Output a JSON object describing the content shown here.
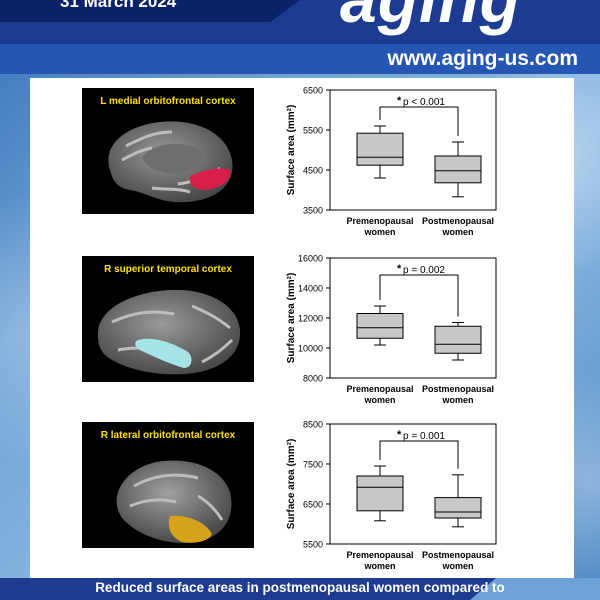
{
  "header": {
    "date": "31 March 2024",
    "logo": "aging",
    "url": "www.aging-us.com"
  },
  "panels": [
    {
      "region": "L medial orbitofrontal cortex",
      "highlight_color": "#d81e4a",
      "chart": {
        "type": "box",
        "ylabel": "Surface area (mm²)",
        "yticks": [
          "3500",
          "4500",
          "5500",
          "6500"
        ],
        "ylim": [
          3500,
          6500
        ],
        "annotation": "p < 0.001",
        "star": "*",
        "categories": [
          "Premenopausal women",
          "Postmenopausal women"
        ],
        "boxes": [
          {
            "whisker_min": 4300,
            "q1": 4620,
            "median": 4820,
            "q3": 5420,
            "whisker_max": 5600
          },
          {
            "whisker_min": 3830,
            "q1": 4180,
            "median": 4480,
            "q3": 4850,
            "whisker_max": 5200
          }
        ]
      }
    },
    {
      "region": "R superior temporal cortex",
      "highlight_color": "#a6e3e6",
      "chart": {
        "type": "box",
        "ylabel": "Surface area (mm²)",
        "yticks": [
          "8000",
          "10000",
          "12000",
          "14000",
          "16000"
        ],
        "ylim": [
          8000,
          16000
        ],
        "annotation": "p = 0.002",
        "star": "*",
        "categories": [
          "Premenopausal women",
          "Postmenopausal women"
        ],
        "boxes": [
          {
            "whisker_min": 10200,
            "q1": 10650,
            "median": 11350,
            "q3": 12300,
            "whisker_max": 12800
          },
          {
            "whisker_min": 9200,
            "q1": 9650,
            "median": 10250,
            "q3": 11450,
            "whisker_max": 11700
          }
        ]
      }
    },
    {
      "region": "R lateral orbitofrontal cortex",
      "highlight_color": "#d6a21a",
      "chart": {
        "type": "box",
        "ylabel": "Surface area (mm²)",
        "yticks": [
          "5500",
          "6500",
          "7500",
          "8500"
        ],
        "ylim": [
          5500,
          8500
        ],
        "annotation": "p = 0.001",
        "star": "*",
        "categories": [
          "Premenopausal women",
          "Postmenopausal women"
        ],
        "boxes": [
          {
            "whisker_min": 6080,
            "q1": 6330,
            "median": 6920,
            "q3": 7200,
            "whisker_max": 7450
          },
          {
            "whisker_min": 5930,
            "q1": 6150,
            "median": 6300,
            "q3": 6660,
            "whisker_max": 7230
          }
        ]
      }
    }
  ],
  "caption": "Reduced surface areas in postmenopausal women compared to"
}
